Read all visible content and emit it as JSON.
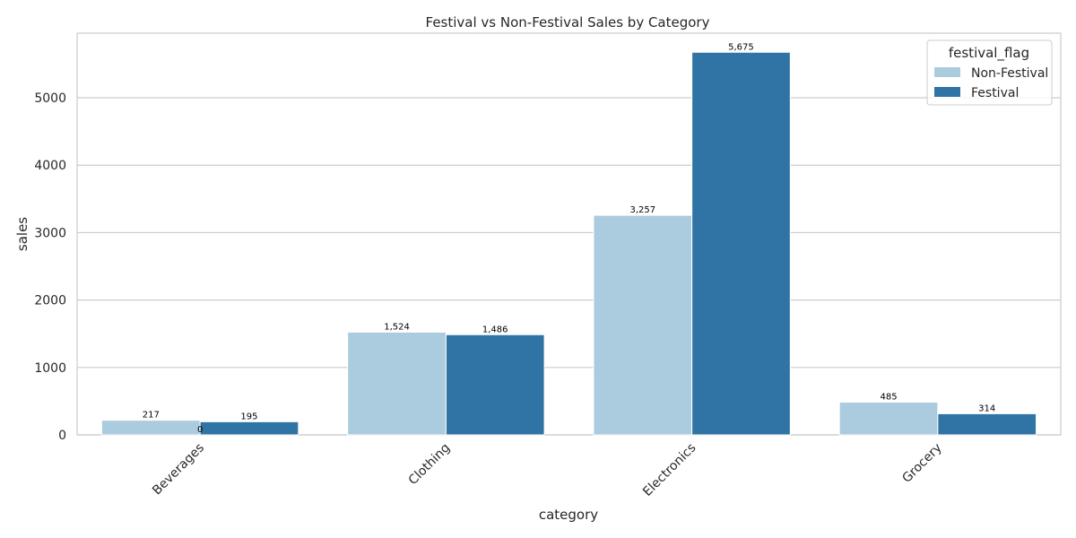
{
  "chart_data": {
    "type": "bar",
    "title": "Festival vs Non-Festival Sales by Category",
    "xlabel": "category",
    "ylabel": "sales",
    "categories": [
      "Beverages",
      "Clothing",
      "Electronics",
      "Grocery"
    ],
    "series": [
      {
        "name": "Non-Festival",
        "color": "#abcbde",
        "values": [
          217,
          1524,
          3257,
          485
        ],
        "labels": [
          "217",
          "1,524",
          "3,257",
          "485"
        ]
      },
      {
        "name": "Festival",
        "color": "#2f74a4",
        "values": [
          195,
          1486,
          5675,
          314
        ],
        "labels": [
          "195",
          "1,486",
          "5,675",
          "314"
        ]
      }
    ],
    "extra_annotations": [
      {
        "text": "0",
        "category": "Beverages"
      }
    ],
    "yticks": [
      0,
      1000,
      2000,
      3000,
      4000,
      5000
    ],
    "ylim": [
      0,
      5958
    ],
    "legend": {
      "title": "festival_flag",
      "placement": "top-right"
    },
    "grid": "horizontal",
    "grid_color": "#cccccc",
    "axes_border_color": "#cccccc"
  }
}
